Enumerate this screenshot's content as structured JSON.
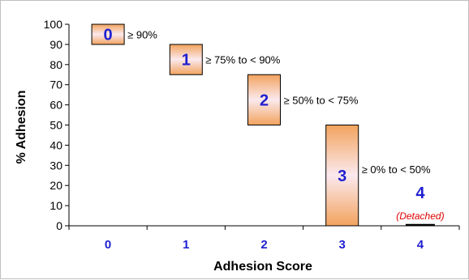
{
  "chart_data": {
    "type": "bar",
    "ylabel": "% Adhesion",
    "xlabel": "Adhesion Score",
    "ylim": [
      0,
      100
    ],
    "yticks": [
      0,
      10,
      20,
      30,
      40,
      50,
      60,
      70,
      80,
      90,
      100
    ],
    "categories": [
      "0",
      "1",
      "2",
      "3",
      "4"
    ],
    "ranges": [
      {
        "score": "0",
        "low": 90,
        "high": 100,
        "label": "≥ 90%"
      },
      {
        "score": "1",
        "low": 75,
        "high": 90,
        "label": "≥ 75% to < 90%"
      },
      {
        "score": "2",
        "low": 50,
        "high": 75,
        "label": "≥ 50% to < 75%"
      },
      {
        "score": "3",
        "low": 0,
        "high": 50,
        "label": "≥ 0% to < 50%"
      },
      {
        "score": "4",
        "low": 0,
        "high": 0,
        "label": "(Detached)"
      }
    ],
    "grid": false,
    "legend": "none"
  },
  "colors": {
    "score_text": "#1f1fd1",
    "note_text": "#e00000",
    "bar_light": "#fbe9ee",
    "bar_dark": "#f2a35e"
  }
}
